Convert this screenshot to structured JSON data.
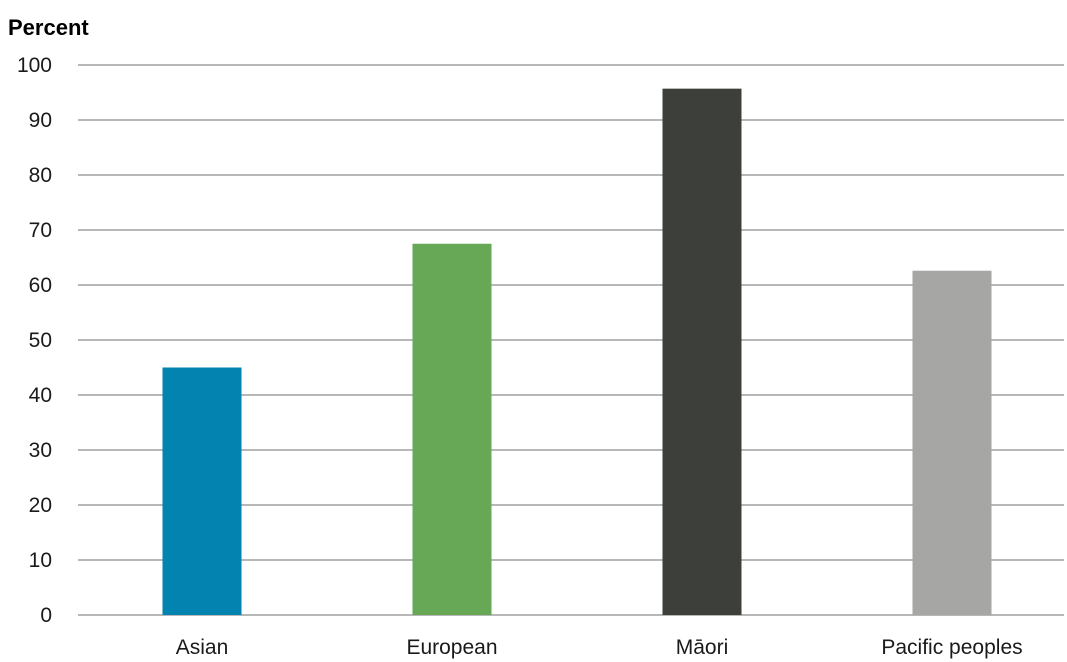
{
  "chart_data": {
    "type": "bar",
    "ylabel": "Percent",
    "xlabel": "",
    "categories": [
      "Asian",
      "European",
      "Māori",
      "Pacific peoples"
    ],
    "values": [
      45,
      67.5,
      95.7,
      62.6
    ],
    "colors": [
      "#0283b0",
      "#66a855",
      "#3d403a",
      "#a6a6a4"
    ],
    "ylim": [
      0,
      100
    ],
    "yticks": [
      "0",
      "10",
      "20",
      "30",
      "40",
      "50",
      "60",
      "70",
      "80",
      "90",
      "100"
    ],
    "grid": true,
    "legend": "none"
  }
}
